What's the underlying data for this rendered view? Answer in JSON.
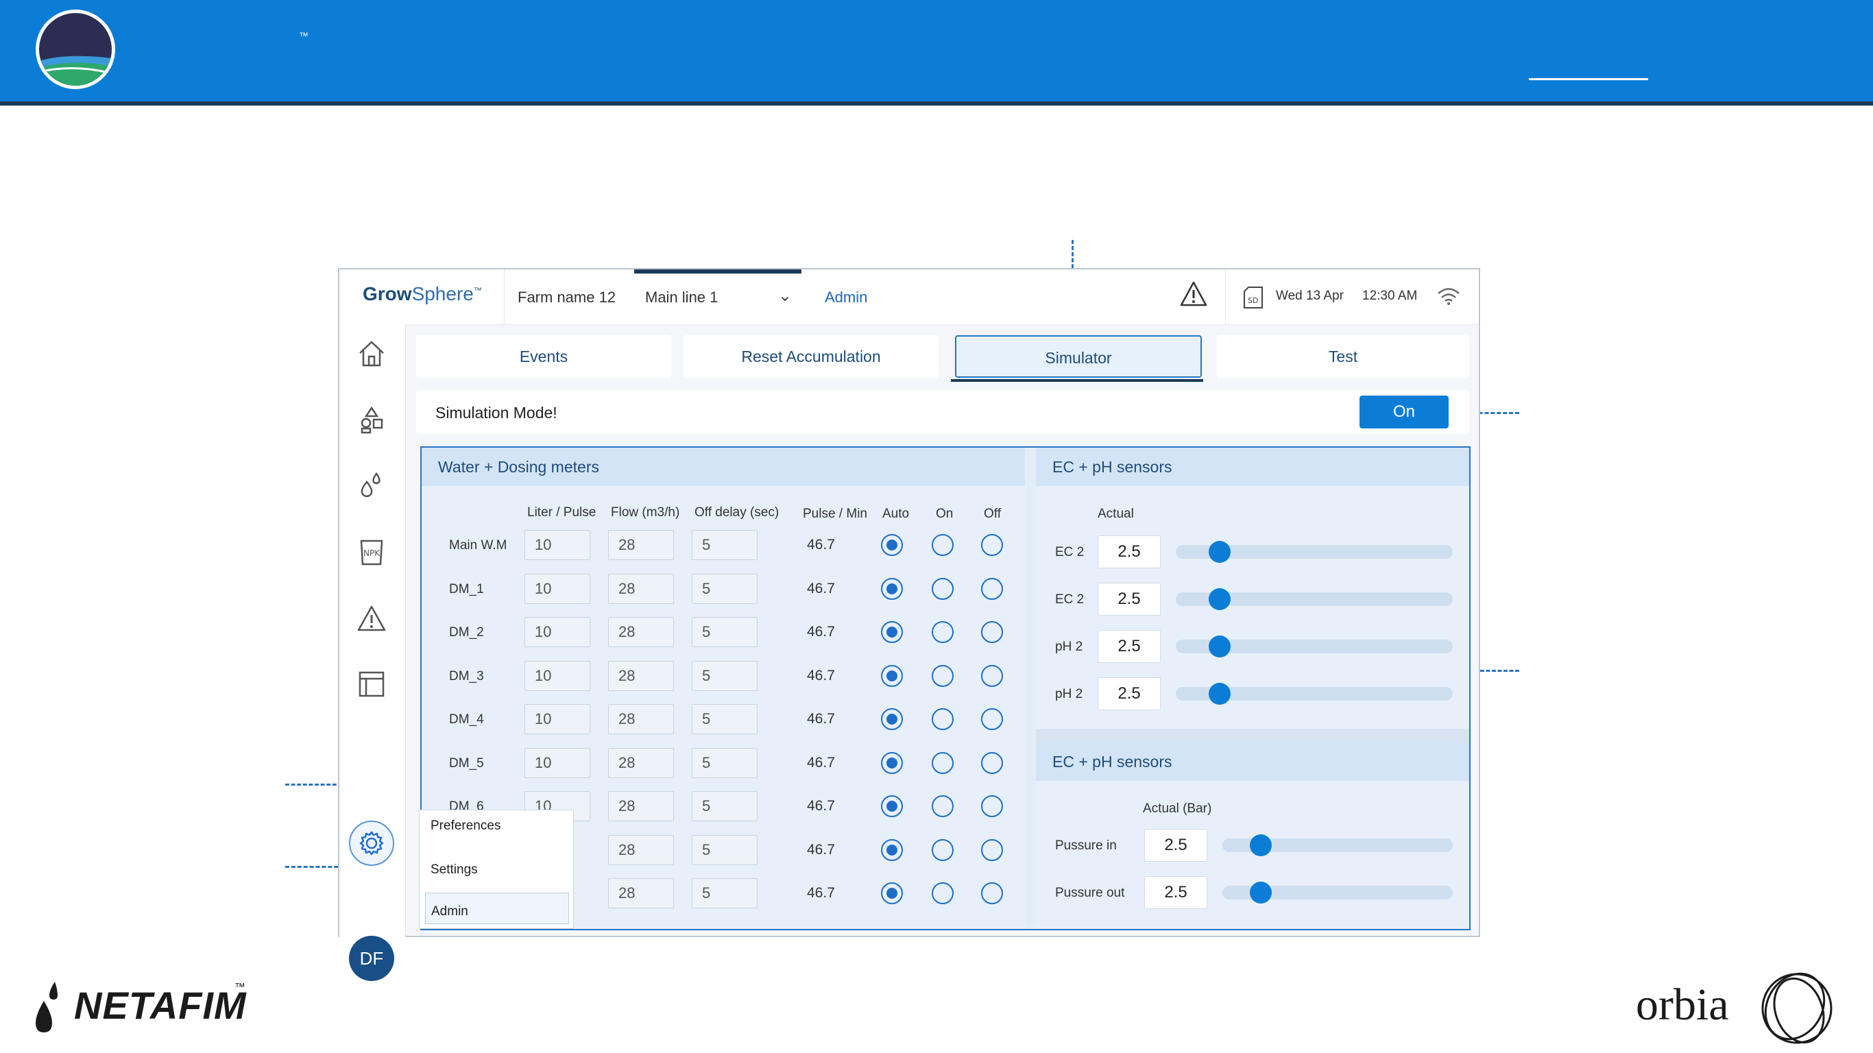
{
  "banner": {
    "trademark": "™"
  },
  "app": {
    "brand_bold": "Grow",
    "brand_light": "Sphere",
    "brand_tm": "™",
    "farm_name": "Farm name 12",
    "main_line": "Main line 1",
    "user_role": "Admin",
    "date": "Wed 13 Apr",
    "time": "12:30 AM"
  },
  "tabs": [
    {
      "label": "Events"
    },
    {
      "label": "Reset Accumulation"
    },
    {
      "label": "Simulator"
    },
    {
      "label": "Test"
    }
  ],
  "simulation": {
    "label": "Simulation Mode!",
    "toggle_label": "On"
  },
  "meters": {
    "title": "Water + Dosing meters",
    "columns": [
      "Liter / Pulse",
      "Flow (m3/h)",
      "Off delay (sec)",
      "Pulse / Min",
      "Auto",
      "On",
      "Off"
    ],
    "rows": [
      {
        "name": "Main W.M",
        "liter": "10",
        "flow": "28",
        "delay": "5",
        "pulse": "46.7"
      },
      {
        "name": "DM_1",
        "liter": "10",
        "flow": "28",
        "delay": "5",
        "pulse": "46.7"
      },
      {
        "name": "DM_2",
        "liter": "10",
        "flow": "28",
        "delay": "5",
        "pulse": "46.7"
      },
      {
        "name": "DM_3",
        "liter": "10",
        "flow": "28",
        "delay": "5",
        "pulse": "46.7"
      },
      {
        "name": "DM_4",
        "liter": "10",
        "flow": "28",
        "delay": "5",
        "pulse": "46.7"
      },
      {
        "name": "DM_5",
        "liter": "10",
        "flow": "28",
        "delay": "5",
        "pulse": "46.7"
      },
      {
        "name": "DM_6",
        "liter": "10",
        "flow": "28",
        "delay": "5",
        "pulse": "46.7"
      },
      {
        "name": "",
        "liter": "",
        "flow": "28",
        "delay": "5",
        "pulse": "46.7"
      },
      {
        "name": "",
        "liter": "",
        "flow": "28",
        "delay": "5",
        "pulse": "46.7"
      }
    ]
  },
  "sensors": {
    "title": "EC + pH sensors",
    "column": "Actual",
    "items": [
      {
        "label": "EC 2",
        "value": "2.5",
        "level": 0.12
      },
      {
        "label": "EC 2",
        "value": "2.5",
        "level": 0.12
      },
      {
        "label": "pH 2",
        "value": "2.5",
        "level": 0.12
      },
      {
        "label": "pH 2",
        "value": "2.5",
        "level": 0.12
      }
    ]
  },
  "pressure": {
    "title": "EC + pH sensors",
    "column": "Actual (Bar)",
    "items": [
      {
        "label": "Pussure in",
        "value": "2.5",
        "level": 0.12
      },
      {
        "label": "Pussure out",
        "value": "2.5",
        "level": 0.12
      }
    ]
  },
  "user_menu": {
    "items": [
      "Preferences",
      "Settings",
      "Admin"
    ],
    "avatar_initials": "DF"
  },
  "footer": {
    "left_logo": "NETAFIM",
    "left_tm": "™",
    "right_logo": "orbia"
  },
  "colors": {
    "banner": "#0b7dd6",
    "accent": "#1e6ec8",
    "navy": "#1b3a57"
  }
}
